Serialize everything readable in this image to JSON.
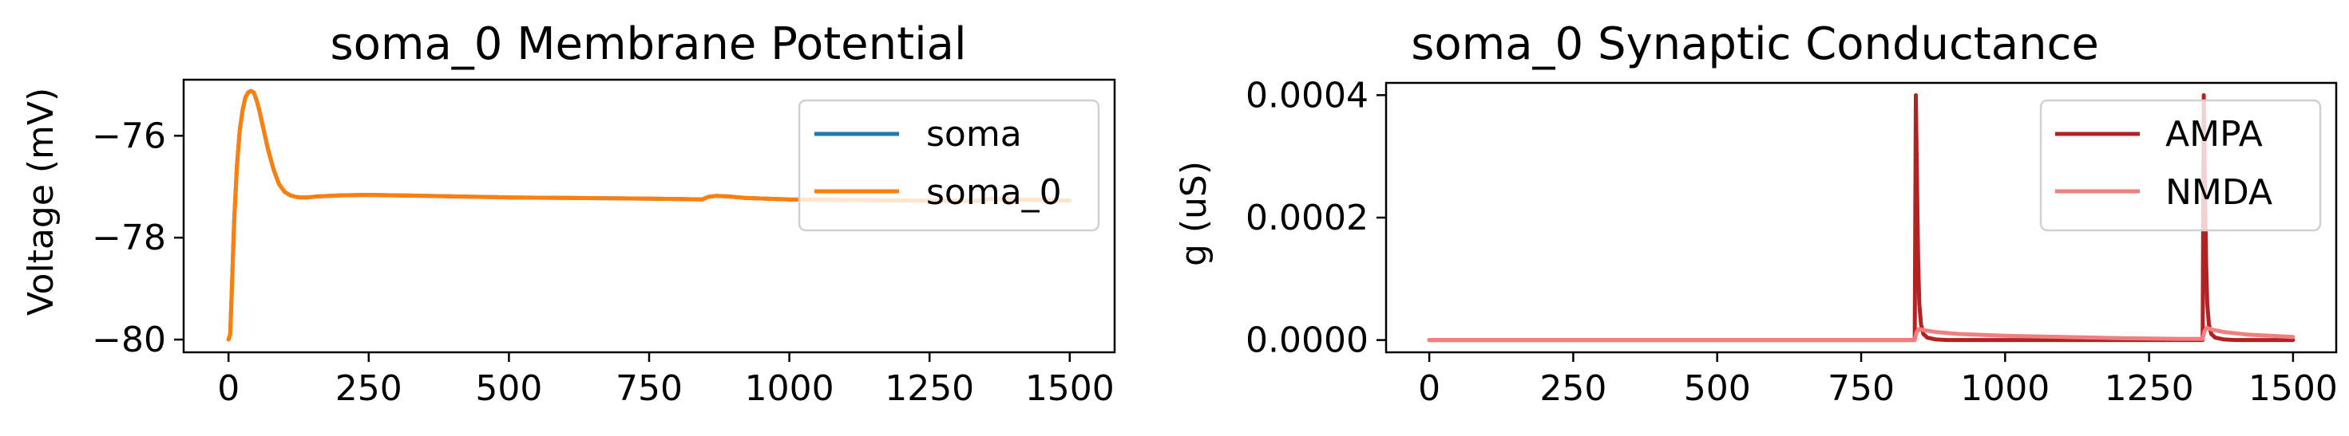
{
  "chart_data": [
    {
      "type": "line",
      "title": "soma_0 Membrane Potential",
      "xlabel": "",
      "ylabel": "Voltage (mV)",
      "xlim": [
        -80,
        1580
      ],
      "ylim": [
        -80.25,
        -74.9
      ],
      "xticks": [
        0,
        250,
        500,
        750,
        1000,
        1250,
        1500
      ],
      "yticks": [
        -80,
        -78,
        -76
      ],
      "ytick_labels": [
        "−80",
        "−78",
        "−76"
      ],
      "grid": false,
      "legend_position": "top-right",
      "colors": {
        "soma": "#1f77b4",
        "soma_0": "#ff7f0e"
      },
      "series": [
        {
          "name": "soma",
          "x": [
            0,
            3,
            6,
            10,
            15,
            20,
            25,
            30,
            35,
            40,
            45,
            50,
            55,
            60,
            70,
            80,
            90,
            100,
            110,
            120,
            130,
            140,
            150,
            160,
            180,
            200,
            250,
            300,
            400,
            500,
            600,
            700,
            800,
            845,
            855,
            870,
            890,
            920,
            1000,
            1100,
            1200,
            1300,
            1340,
            1360,
            1400,
            1500
          ],
          "y": [
            -80,
            -79.9,
            -79.0,
            -77.7,
            -76.6,
            -75.9,
            -75.5,
            -75.25,
            -75.15,
            -75.12,
            -75.15,
            -75.3,
            -75.5,
            -75.75,
            -76.25,
            -76.65,
            -76.95,
            -77.1,
            -77.17,
            -77.2,
            -77.21,
            -77.21,
            -77.2,
            -77.19,
            -77.18,
            -77.17,
            -77.16,
            -77.17,
            -77.19,
            -77.21,
            -77.22,
            -77.23,
            -77.24,
            -77.25,
            -77.2,
            -77.18,
            -77.19,
            -77.22,
            -77.25,
            -77.26,
            -77.27,
            -77.28,
            -77.28,
            -77.24,
            -77.25,
            -77.27
          ]
        },
        {
          "name": "soma_0",
          "x": [
            0,
            3,
            6,
            10,
            15,
            20,
            25,
            30,
            35,
            40,
            45,
            50,
            55,
            60,
            70,
            80,
            90,
            100,
            110,
            120,
            130,
            140,
            150,
            160,
            180,
            200,
            250,
            300,
            400,
            500,
            600,
            700,
            800,
            845,
            855,
            870,
            890,
            920,
            1000,
            1100,
            1200,
            1300,
            1340,
            1360,
            1400,
            1500
          ],
          "y": [
            -80,
            -79.9,
            -79.0,
            -77.7,
            -76.6,
            -75.9,
            -75.5,
            -75.25,
            -75.15,
            -75.12,
            -75.15,
            -75.3,
            -75.5,
            -75.75,
            -76.25,
            -76.65,
            -76.95,
            -77.1,
            -77.17,
            -77.2,
            -77.21,
            -77.21,
            -77.2,
            -77.19,
            -77.18,
            -77.17,
            -77.16,
            -77.17,
            -77.19,
            -77.21,
            -77.22,
            -77.23,
            -77.24,
            -77.25,
            -77.2,
            -77.18,
            -77.19,
            -77.22,
            -77.25,
            -77.26,
            -77.27,
            -77.28,
            -77.28,
            -77.24,
            -77.25,
            -77.27
          ]
        }
      ]
    },
    {
      "type": "line",
      "title": "soma_0 Synaptic Conductance",
      "xlabel": "",
      "ylabel": "g (uS)",
      "xlim": [
        -75,
        1575
      ],
      "ylim": [
        -2e-05,
        0.00042
      ],
      "xticks": [
        0,
        250,
        500,
        750,
        1000,
        1250,
        1500
      ],
      "yticks": [
        0,
        0.0002,
        0.0004
      ],
      "ytick_labels": [
        "0.0000",
        "0.0002",
        "0.0004"
      ],
      "grid": false,
      "legend_position": "top-right",
      "colors": {
        "AMPA": "#b22222",
        "NMDA": "#f08080"
      },
      "series": [
        {
          "name": "AMPA",
          "x": [
            0,
            843,
            845,
            847,
            849,
            851,
            854,
            858,
            865,
            880,
            900,
            1000,
            1200,
            1343,
            1345,
            1347,
            1349,
            1351,
            1354,
            1358,
            1365,
            1380,
            1400,
            1500
          ],
          "y": [
            0,
            0,
            0.0004,
            0.00025,
            0.00013,
            6e-05,
            2.5e-05,
            1e-05,
            4e-06,
            1e-06,
            0,
            0,
            0,
            0,
            0.0004,
            0.00025,
            0.00013,
            6e-05,
            2.5e-05,
            1e-05,
            4e-06,
            1e-06,
            0,
            0
          ]
        },
        {
          "name": "NMDA",
          "x": [
            0,
            843,
            846,
            850,
            860,
            880,
            920,
            1000,
            1100,
            1200,
            1300,
            1343,
            1346,
            1350,
            1360,
            1380,
            1420,
            1500
          ],
          "y": [
            0,
            0,
            1.2e-05,
            1.8e-05,
            1.6e-05,
            1.3e-05,
            1e-05,
            7e-06,
            5e-06,
            3e-06,
            2e-06,
            2e-06,
            1.4e-05,
            2e-05,
            1.7e-05,
            1.3e-05,
            9e-06,
            5e-06
          ]
        }
      ]
    }
  ]
}
